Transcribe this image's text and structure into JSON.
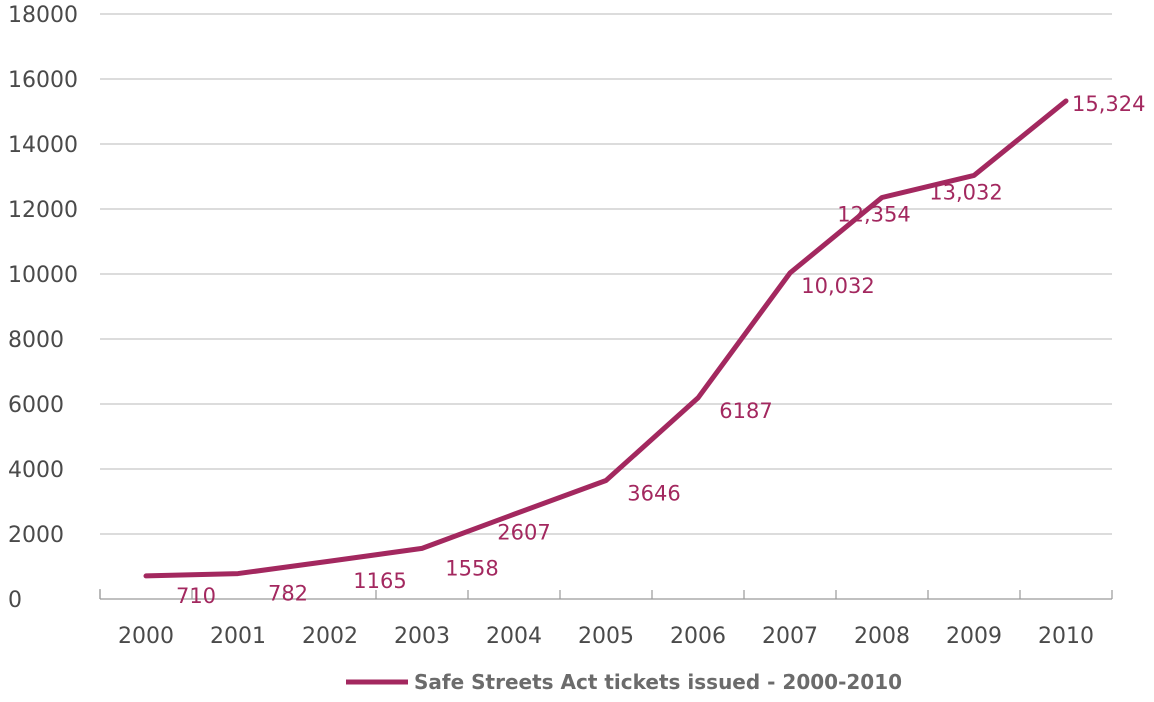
{
  "chart_data": {
    "type": "line",
    "x": [
      "2000",
      "2001",
      "2002",
      "2003",
      "2004",
      "2005",
      "2006",
      "2007",
      "2008",
      "2009",
      "2010"
    ],
    "series": [
      {
        "name": "Safe Streets Act tickets issued - 2000-2010",
        "values": [
          710,
          782,
          1165,
          1558,
          2607,
          3646,
          6187,
          10032,
          12354,
          13032,
          15324
        ],
        "labels": [
          "710",
          "782",
          "1165",
          "1558",
          "2607",
          "3646",
          "6187",
          "10,032",
          "12,354",
          "13,032",
          "15,324"
        ],
        "color": "#a3285f"
      }
    ],
    "ylim": [
      0,
      18000
    ],
    "yticks": [
      "0",
      "2000",
      "4000",
      "6000",
      "8000",
      "10000",
      "12000",
      "14000",
      "16000",
      "18000"
    ],
    "grid": true,
    "legend_position": "bottom-center",
    "title": "",
    "xlabel": "",
    "ylabel": ""
  },
  "colors": {
    "gridline": "#c8c8c8",
    "axis": "#9a9a9a",
    "tick_text": "#4a4a4a",
    "legend_text": "#6b6b6b"
  }
}
